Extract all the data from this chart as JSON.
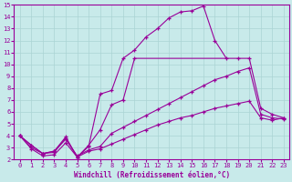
{
  "title": "",
  "xlabel": "Windchill (Refroidissement éolien,°C)",
  "ylabel": "",
  "background_color": "#c8eaea",
  "grid_color": "#aad4d4",
  "line_color": "#990099",
  "xlim": [
    -0.5,
    23.5
  ],
  "ylim": [
    2,
    15
  ],
  "xticks": [
    0,
    1,
    2,
    3,
    4,
    5,
    6,
    7,
    8,
    9,
    10,
    11,
    12,
    13,
    14,
    15,
    16,
    17,
    18,
    19,
    20,
    21,
    22,
    23
  ],
  "yticks": [
    2,
    3,
    4,
    5,
    6,
    7,
    8,
    9,
    10,
    11,
    12,
    13,
    14,
    15
  ],
  "lines": [
    {
      "x": [
        0,
        1,
        2,
        3,
        4,
        5,
        6,
        7,
        8,
        9,
        10,
        11,
        12,
        13,
        14,
        15,
        16,
        17,
        18
      ],
      "y": [
        4,
        3.2,
        2.5,
        2.6,
        3.8,
        2.2,
        3.1,
        7.5,
        7.8,
        10.5,
        11.2,
        12.3,
        13.0,
        13.9,
        14.4,
        14.5,
        14.9,
        12.0,
        10.5
      ]
    },
    {
      "x": [
        0,
        1,
        2,
        3,
        4,
        5,
        6,
        7,
        8,
        9,
        10,
        19,
        20,
        21,
        22,
        23
      ],
      "y": [
        4,
        3.2,
        2.5,
        2.7,
        3.9,
        2.2,
        3.2,
        4.5,
        6.6,
        7.0,
        10.5,
        10.5,
        10.5,
        6.3,
        5.8,
        5.5
      ]
    },
    {
      "x": [
        0,
        1,
        2,
        3,
        4,
        5,
        6,
        7,
        8,
        9,
        10,
        11,
        12,
        13,
        14,
        15,
        16,
        17,
        18,
        19,
        20,
        21,
        22,
        23
      ],
      "y": [
        4,
        3.0,
        2.5,
        2.7,
        3.7,
        2.3,
        2.8,
        3.1,
        4.2,
        4.7,
        5.2,
        5.7,
        6.2,
        6.7,
        7.2,
        7.7,
        8.2,
        8.7,
        9.0,
        9.4,
        9.7,
        5.8,
        5.5,
        5.4
      ]
    },
    {
      "x": [
        0,
        1,
        2,
        3,
        4,
        5,
        6,
        7,
        8,
        9,
        10,
        11,
        12,
        13,
        14,
        15,
        16,
        17,
        18,
        19,
        20,
        21,
        22,
        23
      ],
      "y": [
        4,
        2.9,
        2.3,
        2.4,
        3.4,
        2.2,
        2.7,
        2.9,
        3.3,
        3.7,
        4.1,
        4.5,
        4.9,
        5.2,
        5.5,
        5.7,
        6.0,
        6.3,
        6.5,
        6.7,
        6.9,
        5.5,
        5.3,
        5.5
      ]
    }
  ]
}
